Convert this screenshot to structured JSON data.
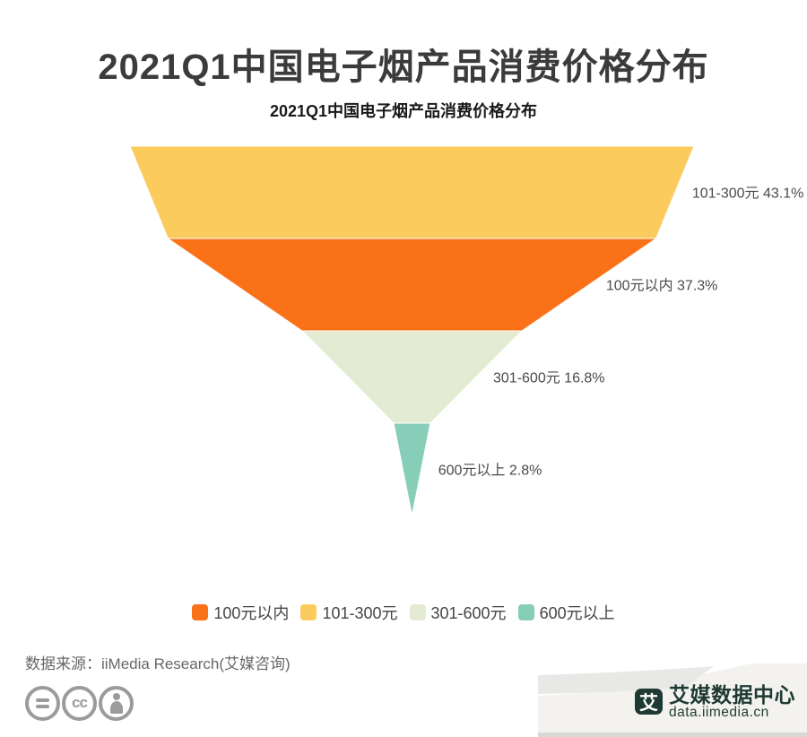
{
  "header": {
    "title": "2021Q1中国电子烟产品消费价格分布"
  },
  "chart_data": {
    "type": "funnel",
    "title": "2021Q1中国电子烟产品消费价格分布",
    "sort": "descending",
    "value_unit": "%",
    "label_suffix": "%",
    "legend_position": "bottom-center",
    "segments": [
      {
        "label": "101-300元",
        "value": 43.1,
        "color": "#FBCB5E"
      },
      {
        "label": "100元以内",
        "value": 37.3,
        "color": "#FB7118"
      },
      {
        "label": "301-600元",
        "value": 16.8,
        "color": "#E3ECD3"
      },
      {
        "label": "600元以上",
        "value": 2.8,
        "color": "#86CEB8"
      }
    ],
    "legend": [
      {
        "label": "100元以内",
        "color": "#FB7118"
      },
      {
        "label": "101-300元",
        "color": "#FBCB5E"
      },
      {
        "label": "301-600元",
        "color": "#E3ECD3"
      },
      {
        "label": "600元以上",
        "color": "#86CEB8"
      }
    ]
  },
  "footer": {
    "source": "数据来源：iiMedia Research(艾媒咨询)",
    "license_icons": {
      "cc_text": "cc"
    },
    "brand": {
      "logo_char": "艾",
      "name": "艾媒数据中心",
      "url": "data.iimedia.cn",
      "color": "#1E3A33"
    }
  }
}
